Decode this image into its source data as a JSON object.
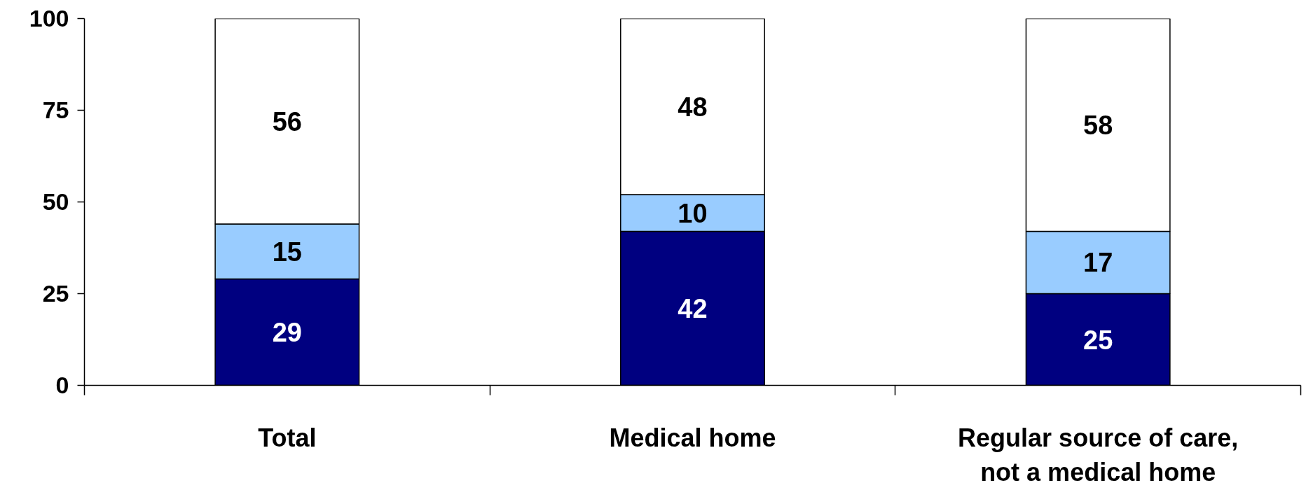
{
  "chart_data": {
    "type": "bar",
    "stacked": true,
    "categories": [
      "Total",
      "Medical home",
      "Regular source of care,\nnot a medical home"
    ],
    "series": [
      {
        "color": "#000080",
        "values": [
          29,
          42,
          25
        ]
      },
      {
        "color": "#99ccff",
        "values": [
          15,
          10,
          17
        ]
      },
      {
        "color": "#ffffff",
        "values": [
          56,
          48,
          58
        ]
      }
    ],
    "ylim": [
      0,
      100
    ],
    "yticks": [
      0,
      25,
      50,
      75,
      100
    ],
    "grid": false,
    "data_labels": true
  }
}
